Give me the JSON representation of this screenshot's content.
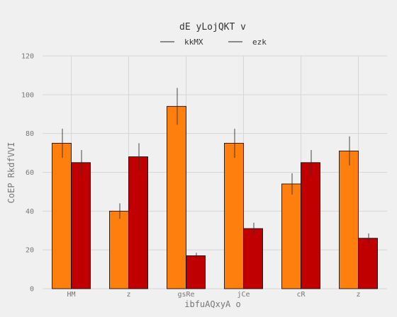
{
  "chart_data": {
    "type": "bar",
    "title": "dE yLojQKT v",
    "xlabel": "ibfuAQxyA o",
    "ylabel": "CoEP RkdfVVI",
    "categories": [
      "HM",
      "z",
      "gsRe",
      "jCe",
      "cR",
      "z"
    ],
    "ylim": [
      0,
      120
    ],
    "yticks": [
      0,
      20,
      40,
      60,
      80,
      100,
      120
    ],
    "grid": true,
    "legend_position": "top-center",
    "series": [
      {
        "name": "kkMX",
        "color": "#ff7f0e",
        "values": [
          75,
          40,
          94,
          75,
          54,
          71
        ],
        "errors": [
          7.5,
          4,
          9.5,
          7.5,
          5.5,
          7.5
        ]
      },
      {
        "name": "ezk",
        "color": "#c00000",
        "values": [
          65,
          68,
          17,
          31,
          65,
          26
        ],
        "errors": [
          6.5,
          7,
          1.5,
          3,
          6.5,
          2.5
        ]
      }
    ]
  }
}
